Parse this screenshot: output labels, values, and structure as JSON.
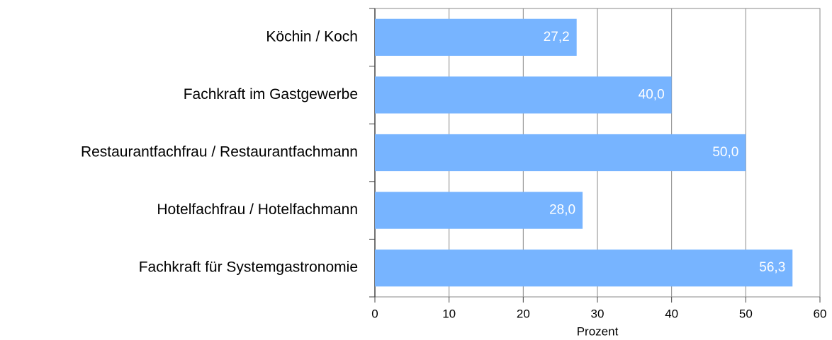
{
  "chart_data": {
    "type": "barh",
    "categories": [
      "Köchin / Koch",
      "Fachkraft im Gastgewerbe",
      "Restaurantfachfrau / Restaurantfachmann",
      "Hotelfachfrau / Hotelfachmann",
      "Fachkraft für Systemgastronomie"
    ],
    "values": [
      27.2,
      40.0,
      50.0,
      28.0,
      56.3
    ],
    "value_labels": [
      "27,2",
      "40,0",
      "50,0",
      "28,0",
      "56,3"
    ],
    "color": "#77b4ff",
    "xlabel": "Prozent",
    "xlim": [
      0,
      60
    ],
    "xticks": [
      0,
      10,
      20,
      30,
      40,
      50,
      60
    ],
    "grid": true
  }
}
